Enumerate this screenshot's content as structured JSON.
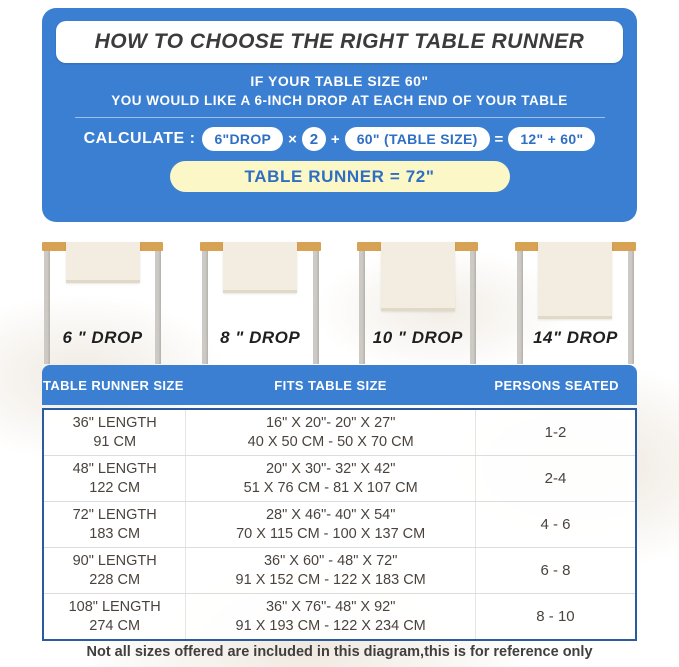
{
  "colors": {
    "panel_blue": "#3a7fd2",
    "pill_text_blue": "#2e6fc4",
    "result_yellow": "#fbf7c6",
    "wood_tabletop": "#d8a254",
    "table_leg_gray": "#c6c1bc",
    "runner_cream": "#f2ede0"
  },
  "header": {
    "title": "HOW TO CHOOSE THE RIGHT TABLE RUNNER",
    "subtitle_line1": "IF YOUR TABLE SIZE 60\"",
    "subtitle_line2": "YOU WOULD LIKE A 6-INCH DROP AT EACH END OF YOUR TABLE"
  },
  "formula": {
    "calculate_label": "CALCULATE :",
    "drop_pill": "6\"DROP",
    "times_sign": "×",
    "multiplier": "2",
    "plus_sign": "+",
    "table_size_pill": "60\" (TABLE SIZE)",
    "equals_sign": "=",
    "sum_pill": "12\" + 60\"",
    "result": "TABLE RUNNER = 72\""
  },
  "drops": [
    {
      "label": "6 \" DROP",
      "drop_inches": 6
    },
    {
      "label": "8 \" DROP",
      "drop_inches": 8
    },
    {
      "label": "10 \" DROP",
      "drop_inches": 10
    },
    {
      "label": "14\" DROP",
      "drop_inches": 14
    }
  ],
  "size_table": {
    "headers": [
      "TABLE RUNNER SIZE",
      "FITS TABLE SIZE",
      "PERSONS SEATED"
    ],
    "rows": [
      {
        "runner_in": "36\" LENGTH",
        "runner_cm": "91 CM",
        "fits_in": "16\" X 20\"- 20\" X 27\"",
        "fits_cm": "40 X 50 CM - 50 X 70 CM",
        "persons": "1-2"
      },
      {
        "runner_in": "48\" LENGTH",
        "runner_cm": "122 CM",
        "fits_in": "20\" X 30\"- 32\" X 42\"",
        "fits_cm": "51 X 76 CM - 81 X 107 CM",
        "persons": "2-4"
      },
      {
        "runner_in": "72\" LENGTH",
        "runner_cm": "183 CM",
        "fits_in": "28\" X 46\"- 40\" X 54\"",
        "fits_cm": "70 X 115 CM - 100 X 137 CM",
        "persons": "4 - 6"
      },
      {
        "runner_in": "90\" LENGTH",
        "runner_cm": "228 CM",
        "fits_in": "36\" X 60\" - 48\" X 72\"",
        "fits_cm": "91 X 152 CM - 122 X 183 CM",
        "persons": "6 - 8"
      },
      {
        "runner_in": "108\" LENGTH",
        "runner_cm": "274 CM",
        "fits_in": "36\" X 76\"- 48\" X 92\"",
        "fits_cm": "91 X 193 CM - 122 X 234 CM",
        "persons": "8 - 10"
      }
    ]
  },
  "footnote": "Not all sizes offered are included in this diagram,this is for reference only"
}
